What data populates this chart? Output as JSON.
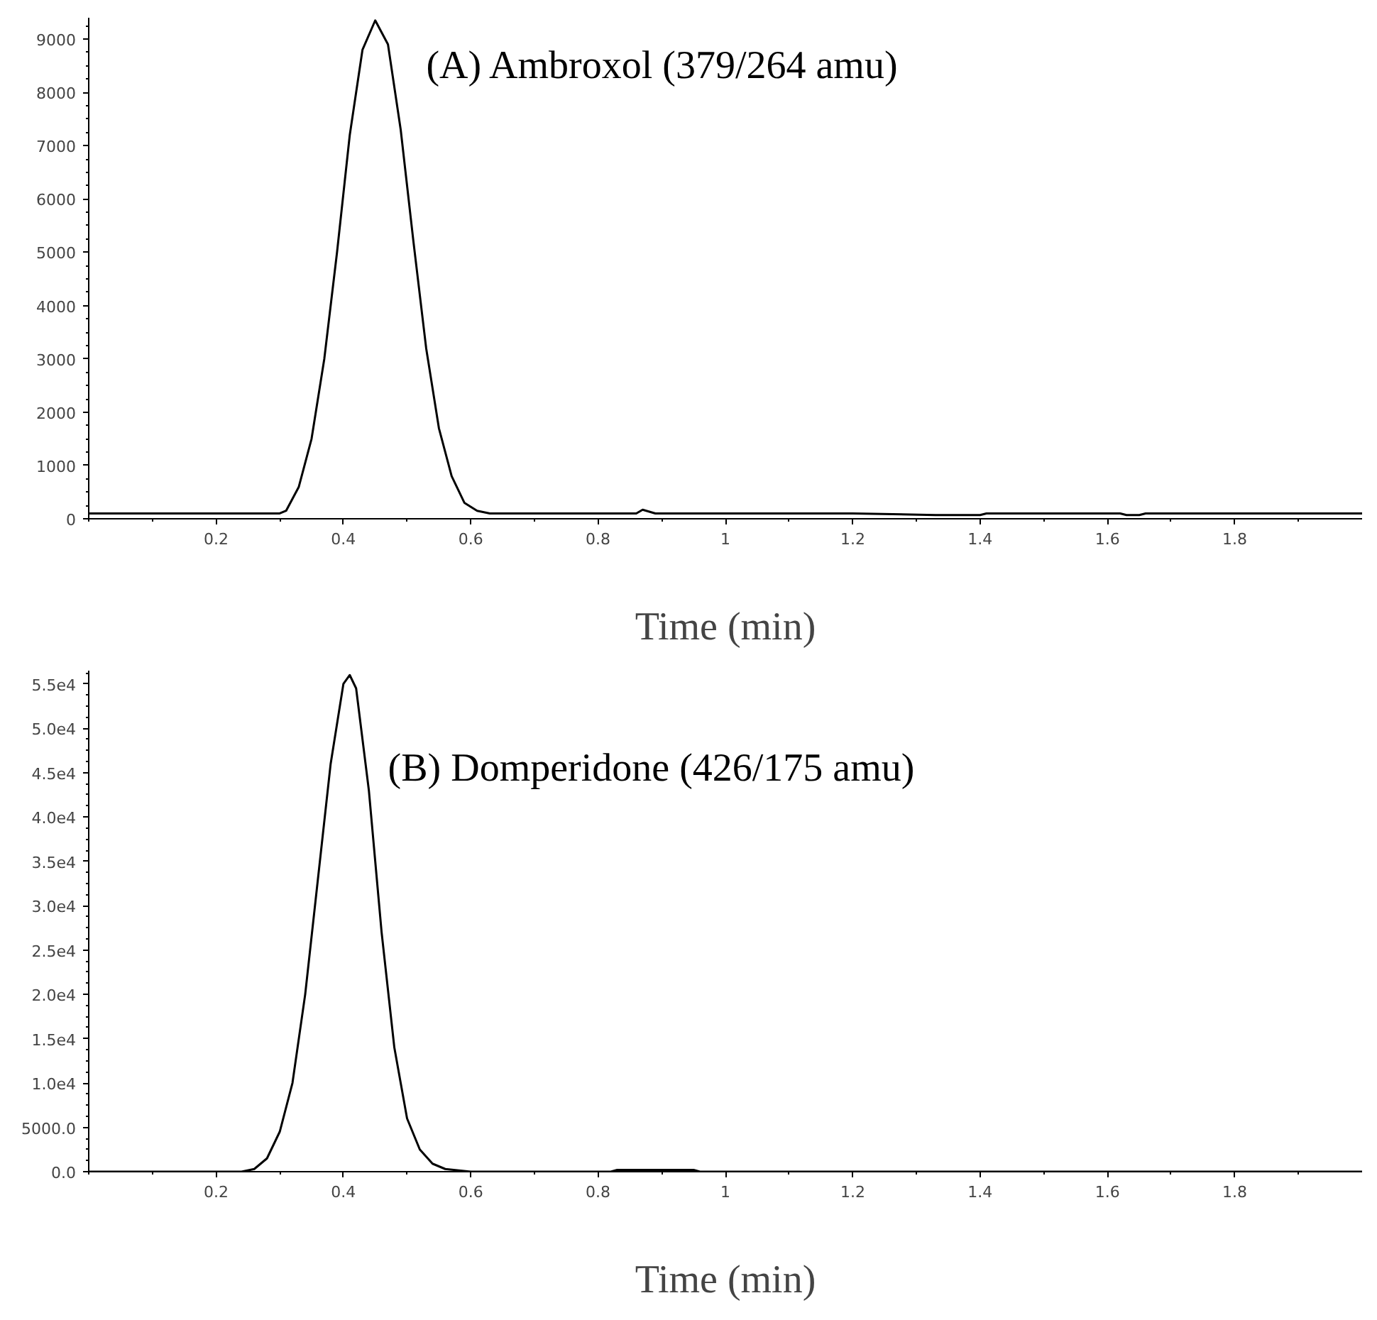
{
  "chart_data": [
    {
      "type": "line",
      "xlabel": "Time (min)",
      "xlim": [
        0,
        2.0
      ],
      "xticks": [
        0.2,
        0.4,
        0.6,
        0.8,
        1.0,
        1.2,
        1.4,
        1.6,
        1.8
      ],
      "ylim": [
        0,
        9400
      ],
      "yticks": [
        0,
        1000,
        2000,
        3000,
        4000,
        5000,
        6000,
        7000,
        8000,
        9000
      ],
      "grid": false,
      "series": [
        {
          "name": "(A) Ambroxol (379/264 amu)",
          "color": "#000000",
          "x": [
            0.0,
            0.1,
            0.2,
            0.3,
            0.31,
            0.33,
            0.35,
            0.37,
            0.39,
            0.41,
            0.43,
            0.45,
            0.47,
            0.49,
            0.51,
            0.53,
            0.55,
            0.57,
            0.59,
            0.61,
            0.63,
            0.8,
            0.86,
            0.87,
            0.89,
            1.2,
            1.33,
            1.4,
            1.41,
            1.62,
            1.63,
            1.65,
            1.66,
            2.0
          ],
          "values": [
            100,
            100,
            100,
            100,
            150,
            600,
            1500,
            3000,
            5000,
            7200,
            8800,
            9350,
            8900,
            7300,
            5200,
            3200,
            1700,
            800,
            300,
            150,
            100,
            100,
            100,
            170,
            100,
            100,
            70,
            70,
            100,
            100,
            70,
            70,
            100,
            100
          ]
        }
      ]
    },
    {
      "type": "line",
      "xlabel": "Time (min)",
      "xlim": [
        0,
        2.0
      ],
      "xticks": [
        0.2,
        0.4,
        0.6,
        0.8,
        1.0,
        1.2,
        1.4,
        1.6,
        1.8
      ],
      "ylim": [
        0,
        56500
      ],
      "yticks": [
        {
          "value": 0,
          "label": "0.0"
        },
        {
          "value": 5000,
          "label": "5000.0"
        },
        {
          "value": 10000,
          "label": "1.0e4"
        },
        {
          "value": 15000,
          "label": "1.5e4"
        },
        {
          "value": 20000,
          "label": "2.0e4"
        },
        {
          "value": 25000,
          "label": "2.5e4"
        },
        {
          "value": 30000,
          "label": "3.0e4"
        },
        {
          "value": 35000,
          "label": "3.5e4"
        },
        {
          "value": 40000,
          "label": "4.0e4"
        },
        {
          "value": 45000,
          "label": "4.5e4"
        },
        {
          "value": 50000,
          "label": "5.0e4"
        },
        {
          "value": 55000,
          "label": "5.5e4"
        }
      ],
      "grid": false,
      "series": [
        {
          "name": "(B) Domperidone (426/175 amu)",
          "color": "#000000",
          "x": [
            0.0,
            0.1,
            0.2,
            0.24,
            0.26,
            0.28,
            0.3,
            0.32,
            0.34,
            0.36,
            0.38,
            0.4,
            0.41,
            0.42,
            0.44,
            0.46,
            0.48,
            0.5,
            0.52,
            0.54,
            0.56,
            0.6,
            0.66,
            0.67,
            0.82,
            0.83,
            0.95,
            0.96,
            2.0
          ],
          "values": [
            0,
            0,
            0,
            0,
            300,
            1500,
            4500,
            10000,
            20000,
            33000,
            46000,
            55000,
            56000,
            54500,
            43000,
            27000,
            14000,
            6000,
            2500,
            900,
            300,
            0,
            0,
            0,
            0,
            200,
            200,
            0,
            0
          ]
        }
      ]
    }
  ]
}
